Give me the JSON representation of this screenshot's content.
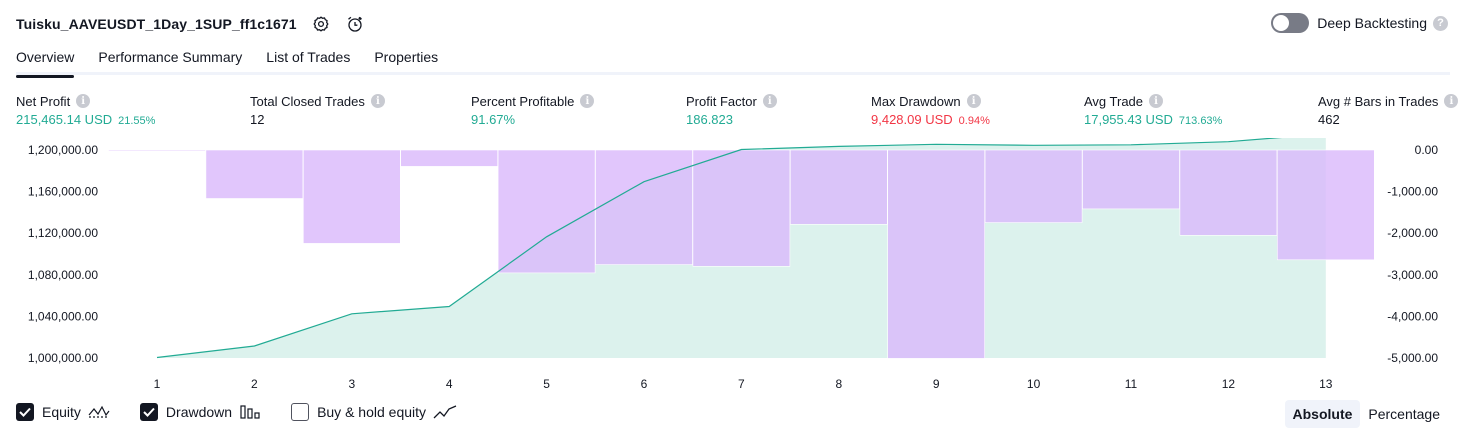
{
  "header": {
    "strategy_name": "Tuisku_AAVEUSDT_1Day_1SUP_ff1c1671",
    "settings_icon": "gear-icon",
    "alert_icon": "alarm-clock-plus-icon",
    "deep_backtesting_label": "Deep Backtesting",
    "deep_backtesting_enabled": false,
    "help_glyph": "?"
  },
  "tabs": [
    {
      "label": "Overview",
      "active": true
    },
    {
      "label": "Performance Summary",
      "active": false
    },
    {
      "label": "List of Trades",
      "active": false
    },
    {
      "label": "Properties",
      "active": false
    }
  ],
  "metrics": [
    {
      "label": "Net Profit",
      "value": "215,465.14 USD",
      "sub": "21.55%",
      "tone": "green"
    },
    {
      "label": "Total Closed Trades",
      "value": "12",
      "sub": "",
      "tone": "dark"
    },
    {
      "label": "Percent Profitable",
      "value": "91.67%",
      "sub": "",
      "tone": "green"
    },
    {
      "label": "Profit Factor",
      "value": "186.823",
      "sub": "",
      "tone": "green"
    },
    {
      "label": "Max Drawdown",
      "value": "9,428.09 USD",
      "sub": "0.94%",
      "tone": "red"
    },
    {
      "label": "Avg Trade",
      "value": "17,955.43 USD",
      "sub": "713.63%",
      "tone": "green"
    },
    {
      "label": "Avg # Bars in Trades",
      "value": "462",
      "sub": "",
      "tone": "dark"
    }
  ],
  "chart_data": {
    "type": "line",
    "x": [
      1,
      2,
      3,
      4,
      5,
      6,
      7,
      8,
      9,
      10,
      11,
      12,
      13
    ],
    "series": [
      {
        "name": "Equity",
        "axis": "left",
        "type": "area",
        "values": [
          1000500,
          1011500,
          1042500,
          1049500,
          1116500,
          1169500,
          1200500,
          1203500,
          1205500,
          1204500,
          1205000,
          1208000,
          1215500
        ]
      },
      {
        "name": "Drawdown",
        "axis": "right",
        "type": "bar",
        "values": [
          -10,
          -1165,
          -2245,
          -395,
          -2955,
          -2755,
          -2795,
          -1785,
          -5010,
          -1745,
          -1415,
          -2050,
          -2640
        ]
      }
    ],
    "left_axis": {
      "ylim": [
        1000000,
        1200000
      ],
      "ticks": [
        "1,200,000.00",
        "1,160,000.00",
        "1,120,000.00",
        "1,080,000.00",
        "1,040,000.00",
        "1,000,000.00"
      ],
      "tick_values": [
        1200000,
        1160000,
        1120000,
        1080000,
        1040000,
        1000000
      ]
    },
    "right_axis": {
      "ylim": [
        -5000,
        0
      ],
      "ticks": [
        "0.00",
        "-1,000.00",
        "-2,000.00",
        "-3,000.00",
        "-4,000.00",
        "-5,000.00"
      ],
      "tick_values": [
        0,
        -1000,
        -2000,
        -3000,
        -4000,
        -5000
      ]
    },
    "x_ticks": [
      "1",
      "2",
      "3",
      "4",
      "5",
      "6",
      "7",
      "8",
      "9",
      "10",
      "11",
      "12",
      "13"
    ],
    "colors": {
      "equity_line": "#22ab94",
      "equity_fill": "#d6f0ea",
      "drawdown_bar": "#d9b8fb"
    }
  },
  "legend": {
    "items": [
      {
        "label": "Equity",
        "checked": true,
        "icon": "equity-wave-icon"
      },
      {
        "label": "Drawdown",
        "checked": true,
        "icon": "drawdown-bars-icon"
      },
      {
        "label": "Buy & hold equity",
        "checked": false,
        "icon": "buy-hold-line-icon"
      }
    ]
  },
  "mode": {
    "absolute_label": "Absolute",
    "percentage_label": "Percentage",
    "selected": "Absolute"
  }
}
